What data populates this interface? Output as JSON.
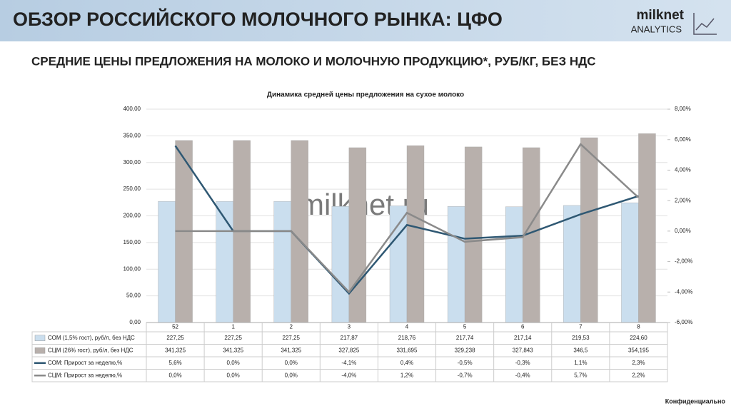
{
  "header": {
    "title": "ОБЗОР РОССИЙСКОГО МОЛОЧНОГО РЫНКА: ЦФО",
    "logo_top": "milknet",
    "logo_bottom": "ANALYTICS"
  },
  "subtitle": "СРЕДНИЕ ЦЕНЫ ПРЕДЛОЖЕНИЯ НА МОЛОКО И МОЛОЧНУЮ ПРОДУКЦИЮ*, РУБ/КГ, БЕЗ НДС",
  "watermark": "milknet.ru",
  "footer": "Конфиденциально",
  "chart_data": {
    "type": "combo",
    "title": "Динамика средней цены предложения на сухое молоко",
    "categories": [
      "52",
      "1",
      "2",
      "3",
      "4",
      "5",
      "6",
      "7",
      "8"
    ],
    "series": [
      {
        "name": "СОМ (1,5% гост), руб/л, без НДС",
        "type": "bar",
        "color": "#cadeee",
        "values": [
          227.25,
          227.25,
          227.25,
          217.87,
          218.76,
          217.74,
          217.14,
          219.53,
          224.6
        ],
        "value_labels": [
          "227,25",
          "227,25",
          "227,25",
          "217,87",
          "218,76",
          "217,74",
          "217,14",
          "219,53",
          "224,60"
        ]
      },
      {
        "name": "СЦМ (26% гост), руб/л, без НДС",
        "type": "bar",
        "color": "#b8b0ac",
        "values": [
          341.325,
          341.325,
          341.325,
          327.825,
          331.695,
          329.238,
          327.843,
          346.5,
          354.195
        ],
        "value_labels": [
          "341,325",
          "341,325",
          "341,325",
          "327,825",
          "331,695",
          "329,238",
          "327,843",
          "346,5",
          "354,195"
        ]
      },
      {
        "name": "СОМ: Прирост за неделю,%",
        "type": "line",
        "axis": "y2",
        "color": "#2f5873",
        "values": [
          5.6,
          0.0,
          0.0,
          -4.1,
          0.4,
          -0.5,
          -0.3,
          1.1,
          2.3
        ],
        "value_labels": [
          "5,6%",
          "0,0%",
          "0,0%",
          "-4,1%",
          "0,4%",
          "-0,5%",
          "-0,3%",
          "1,1%",
          "2,3%"
        ]
      },
      {
        "name": "СЦМ: Прирост за неделю,%",
        "type": "line",
        "axis": "y2",
        "color": "#8a8a8a",
        "values": [
          0.0,
          0.0,
          0.0,
          -4.0,
          1.2,
          -0.7,
          -0.4,
          5.7,
          2.2
        ],
        "value_labels": [
          "0,0%",
          "0,0%",
          "0,0%",
          "-4,0%",
          "1,2%",
          "-0,7%",
          "-0,4%",
          "5,7%",
          "2,2%"
        ]
      }
    ],
    "ylim": [
      0,
      400
    ],
    "yticks": [
      {
        "value": 0,
        "label": "0,00"
      },
      {
        "value": 50,
        "label": "50,00"
      },
      {
        "value": 100,
        "label": "100,00"
      },
      {
        "value": 150,
        "label": "150,00"
      },
      {
        "value": 200,
        "label": "200,00"
      },
      {
        "value": 250,
        "label": "250,00"
      },
      {
        "value": 300,
        "label": "300,00"
      },
      {
        "value": 350,
        "label": "350,00"
      },
      {
        "value": 400,
        "label": "400,00"
      }
    ],
    "y2lim": [
      -6,
      8
    ],
    "y2ticks": [
      {
        "value": -6,
        "label": "-6,00%"
      },
      {
        "value": -4,
        "label": "-4,00%"
      },
      {
        "value": -2,
        "label": "-2,00%"
      },
      {
        "value": 0,
        "label": "0,00%"
      },
      {
        "value": 2,
        "label": "2,00%"
      },
      {
        "value": 4,
        "label": "4,00%"
      },
      {
        "value": 6,
        "label": "6,00%"
      },
      {
        "value": 8,
        "label": "8,00%"
      }
    ],
    "grid": true
  }
}
